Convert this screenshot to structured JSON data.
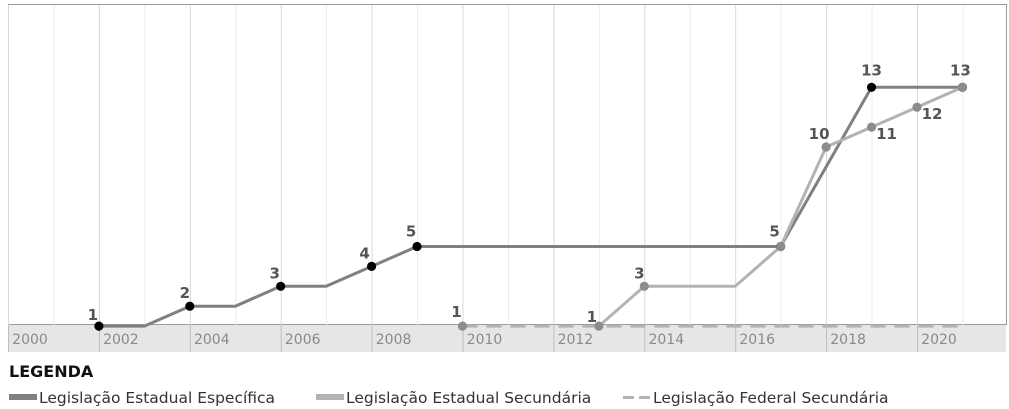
{
  "chart_data": {
    "type": "line",
    "title": "",
    "xlabel": "",
    "ylabel": "",
    "x_ticks": [
      "2000",
      "2002",
      "2004",
      "2006",
      "2008",
      "2010",
      "2012",
      "2014",
      "2016",
      "2018",
      "2020"
    ],
    "xlim": [
      2000,
      2021.5
    ],
    "ylim": [
      0,
      14.5
    ],
    "grid": "vertical",
    "series": [
      {
        "name": "Legislação Estadual Específica",
        "color": "#808080",
        "style": "solid",
        "marker_color": "#000000",
        "points": [
          {
            "x": 2002,
            "y": 1,
            "label": "1"
          },
          {
            "x": 2003,
            "y": 1
          },
          {
            "x": 2004,
            "y": 2,
            "label": "2"
          },
          {
            "x": 2005,
            "y": 2
          },
          {
            "x": 2006,
            "y": 3,
            "label": "3"
          },
          {
            "x": 2007,
            "y": 3
          },
          {
            "x": 2008,
            "y": 4,
            "label": "4"
          },
          {
            "x": 2009,
            "y": 5,
            "label": "5"
          },
          {
            "x": 2017,
            "y": 5,
            "label": "5"
          },
          {
            "x": 2019,
            "y": 13,
            "label": "13"
          },
          {
            "x": 2021,
            "y": 13,
            "label": "13"
          }
        ]
      },
      {
        "name": "Legislação Estadual Secundária",
        "color": "#b3b3b3",
        "style": "solid",
        "marker_color": "#8c8c8c",
        "points": [
          {
            "x": 2013,
            "y": 1,
            "label": "1"
          },
          {
            "x": 2014,
            "y": 3,
            "label": "3"
          },
          {
            "x": 2016,
            "y": 3
          },
          {
            "x": 2017,
            "y": 5
          },
          {
            "x": 2018,
            "y": 10,
            "label": "10"
          },
          {
            "x": 2019,
            "y": 11,
            "label": "11"
          },
          {
            "x": 2020,
            "y": 12,
            "label": "12"
          },
          {
            "x": 2021,
            "y": 13
          }
        ]
      },
      {
        "name": "Legislação Federal Secundária",
        "color": "#b3b3b3",
        "style": "dashed",
        "marker_color": "#8c8c8c",
        "points": [
          {
            "x": 2010,
            "y": 1,
            "label": "1"
          },
          {
            "x": 2021,
            "y": 1
          }
        ]
      }
    ],
    "legend": {
      "title": "LEGENDA",
      "position": "bottom",
      "items": [
        {
          "label": "Legislação Estadual Específica",
          "color": "#808080",
          "style": "solid"
        },
        {
          "label": "Legislação Estadual Secundária",
          "color": "#b3b3b3",
          "style": "solid"
        },
        {
          "label": "Legislação Federal Secundária",
          "color": "#b3b3b3",
          "style": "dashed"
        }
      ]
    }
  }
}
